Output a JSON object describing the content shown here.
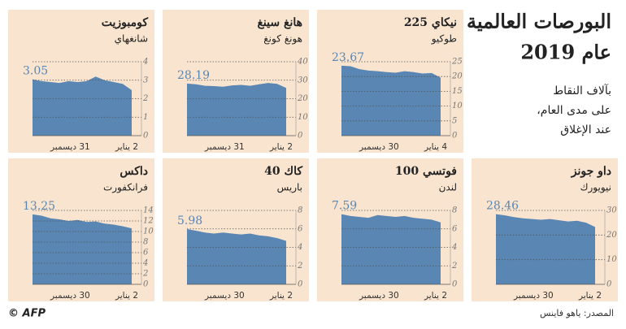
{
  "header": {
    "title": "البورصات العالمية",
    "title_line2": "عام 2019",
    "subtitle_lines": [
      "بآلاف النقاط",
      "على مدى العام،",
      "عند الإغلاق"
    ]
  },
  "footer": {
    "source": "المصدر: ياهو فاينس",
    "credit": "© AFP"
  },
  "chart_data": [
    {
      "type": "area",
      "title": "كومبوزيت",
      "subtitle": "شانغهاي",
      "color": "#5a86b3",
      "categories": [
        "31 ديسمبر",
        null,
        null,
        null,
        null,
        null,
        null,
        null,
        null,
        null,
        null,
        "2 يناير"
      ],
      "values": [
        3.05,
        2.95,
        2.9,
        2.85,
        2.95,
        2.9,
        2.95,
        3.2,
        3.0,
        2.9,
        2.8,
        2.46
      ],
      "ylim": [
        0,
        4
      ],
      "yticks": [
        0,
        1,
        2,
        3,
        4
      ],
      "grid": true
    },
    {
      "type": "area",
      "title": "هانغ سينغ",
      "subtitle": "هونغ كونغ",
      "color": "#5a86b3",
      "categories": [
        "31 ديسمبر",
        null,
        null,
        null,
        null,
        null,
        null,
        null,
        null,
        null,
        null,
        "2 يناير"
      ],
      "values": [
        28.19,
        27.8,
        27.0,
        26.8,
        26.5,
        27.2,
        27.5,
        27.0,
        27.8,
        28.5,
        28.0,
        25.8
      ],
      "ylim": [
        0,
        40
      ],
      "yticks": [
        0,
        10,
        20,
        30,
        40
      ],
      "grid": true
    },
    {
      "type": "area",
      "title": "نيكاي 225",
      "subtitle": "طوكيو",
      "color": "#5a86b3",
      "categories": [
        "30 ديسمبر",
        null,
        null,
        null,
        null,
        null,
        null,
        null,
        null,
        null,
        null,
        "4 يناير"
      ],
      "values": [
        23.67,
        23.5,
        22.5,
        22.0,
        21.8,
        21.5,
        21.3,
        21.8,
        21.5,
        21.0,
        21.2,
        19.6
      ],
      "ylim": [
        0,
        25
      ],
      "yticks": [
        0,
        5,
        10,
        15,
        20,
        25
      ],
      "grid": true
    },
    {
      "type": "area",
      "title": "داكس",
      "subtitle": "فرانكفورت",
      "color": "#5a86b3",
      "categories": [
        "30 ديسمبر",
        null,
        null,
        null,
        null,
        null,
        null,
        null,
        null,
        null,
        null,
        "2 يناير"
      ],
      "values": [
        13.25,
        13.0,
        12.5,
        12.3,
        12.0,
        12.2,
        11.8,
        11.9,
        11.5,
        11.3,
        11.0,
        10.6
      ],
      "ylim": [
        0,
        14
      ],
      "yticks": [
        0,
        2,
        4,
        6,
        8,
        10,
        12,
        14
      ],
      "grid": true
    },
    {
      "type": "area",
      "title": "كاك 40",
      "subtitle": "باريس",
      "color": "#5a86b3",
      "categories": [
        "30 ديسمبر",
        null,
        null,
        null,
        null,
        null,
        null,
        null,
        null,
        null,
        null,
        "2 يناير"
      ],
      "values": [
        5.98,
        5.8,
        5.6,
        5.5,
        5.6,
        5.5,
        5.4,
        5.5,
        5.3,
        5.2,
        5.0,
        4.7
      ],
      "ylim": [
        0,
        8
      ],
      "yticks": [
        0,
        2,
        4,
        6,
        8
      ],
      "grid": true
    },
    {
      "type": "area",
      "title": "فوتسي 100",
      "subtitle": "لندن",
      "color": "#5a86b3",
      "categories": [
        "30 ديسمبر",
        null,
        null,
        null,
        null,
        null,
        null,
        null,
        null,
        null,
        null,
        "2 يناير"
      ],
      "values": [
        7.59,
        7.4,
        7.3,
        7.2,
        7.5,
        7.4,
        7.3,
        7.4,
        7.2,
        7.1,
        7.0,
        6.7
      ],
      "ylim": [
        0,
        8
      ],
      "yticks": [
        0,
        2,
        4,
        6,
        8
      ],
      "grid": true
    },
    {
      "type": "area",
      "title": "داو جونز",
      "subtitle": "نيويورك",
      "color": "#5a86b3",
      "categories": [
        "30 ديسمبر",
        null,
        null,
        null,
        null,
        null,
        null,
        null,
        null,
        null,
        null,
        "2 يناير"
      ],
      "values": [
        28.46,
        28.0,
        27.3,
        26.8,
        26.5,
        26.2,
        26.5,
        26.0,
        25.5,
        25.8,
        25.0,
        23.3
      ],
      "ylim": [
        0,
        30
      ],
      "yticks": [
        0,
        10,
        20,
        30
      ],
      "grid": true
    }
  ]
}
